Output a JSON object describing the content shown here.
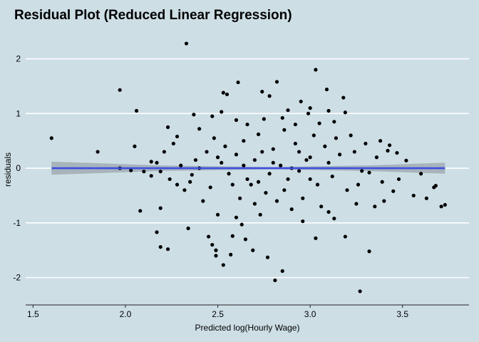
{
  "chart_data": {
    "type": "scatter",
    "title": "Residual Plot (Reduced Linear Regression)",
    "xlabel": "Predicted log(Hourly Wage)",
    "ylabel": "residuals",
    "xlim": [
      1.46,
      3.86
    ],
    "ylim": [
      -2.5,
      2.45
    ],
    "x_ticks": [
      1.5,
      2.0,
      2.5,
      3.0,
      3.5
    ],
    "x_tick_labels": [
      "1.5",
      "2.0",
      "2.5",
      "3.0",
      "3.5"
    ],
    "y_ticks": [
      -2,
      -1,
      0,
      1,
      2
    ],
    "y_tick_labels": [
      "-2",
      "-1",
      "0",
      "1",
      "2"
    ],
    "grid": "horizontal",
    "colors": {
      "background": "#cddee5",
      "grid": "#ffffff",
      "points": "#000000",
      "fit_line": "#3f4fe0",
      "confidence_band": "#9aa5ab"
    },
    "fit_line": {
      "x": [
        1.6,
        3.73
      ],
      "y": [
        0.0,
        0.0
      ]
    },
    "confidence_band": {
      "x": [
        1.6,
        2.2,
        2.8,
        3.3,
        3.73
      ],
      "lower": [
        -0.12,
        -0.05,
        -0.02,
        -0.05,
        -0.1
      ],
      "upper": [
        0.12,
        0.05,
        0.02,
        0.05,
        0.1
      ]
    },
    "points": [
      [
        2.33,
        2.28
      ],
      [
        3.03,
        1.8
      ],
      [
        1.97,
        1.43
      ],
      [
        2.53,
        1.38
      ],
      [
        2.06,
        1.05
      ],
      [
        1.6,
        0.55
      ],
      [
        1.85,
        0.3
      ],
      [
        2.82,
        1.58
      ],
      [
        2.61,
        1.57
      ],
      [
        2.55,
        1.35
      ],
      [
        2.74,
        1.4
      ],
      [
        3.09,
        1.44
      ],
      [
        3.18,
        1.29
      ],
      [
        2.78,
        1.32
      ],
      [
        2.95,
        1.22
      ],
      [
        2.52,
        1.03
      ],
      [
        3.0,
        1.1
      ],
      [
        3.1,
        1.05
      ],
      [
        3.19,
        1.02
      ],
      [
        2.88,
        1.06
      ],
      [
        2.99,
        1.0
      ],
      [
        2.37,
        0.98
      ],
      [
        2.47,
        0.95
      ],
      [
        2.6,
        0.88
      ],
      [
        2.75,
        0.9
      ],
      [
        2.85,
        0.92
      ],
      [
        2.92,
        0.8
      ],
      [
        3.05,
        0.82
      ],
      [
        3.13,
        0.85
      ],
      [
        2.23,
        0.75
      ],
      [
        2.4,
        0.72
      ],
      [
        2.66,
        0.8
      ],
      [
        3.3,
        0.45
      ],
      [
        3.38,
        0.5
      ],
      [
        3.43,
        0.42
      ],
      [
        3.52,
        0.14
      ],
      [
        3.47,
        0.28
      ],
      [
        3.42,
        0.32
      ],
      [
        2.05,
        0.4
      ],
      [
        2.14,
        0.12
      ],
      [
        2.17,
        0.1
      ],
      [
        2.21,
        0.3
      ],
      [
        2.26,
        0.45
      ],
      [
        2.28,
        0.58
      ],
      [
        2.19,
        -0.06
      ],
      [
        2.1,
        -0.06
      ],
      [
        2.03,
        -0.04
      ],
      [
        2.14,
        -0.14
      ],
      [
        1.97,
        0.0
      ],
      [
        2.24,
        -0.2
      ],
      [
        3.26,
        -0.3
      ],
      [
        3.32,
        -0.08
      ],
      [
        3.39,
        -0.25
      ],
      [
        3.45,
        -0.42
      ],
      [
        3.48,
        -0.2
      ],
      [
        3.56,
        -0.5
      ],
      [
        3.6,
        -0.1
      ],
      [
        3.63,
        -0.55
      ],
      [
        3.68,
        -0.32
      ],
      [
        3.71,
        -0.7
      ],
      [
        3.73,
        -0.67
      ],
      [
        3.67,
        -0.35
      ],
      [
        2.08,
        -0.78
      ],
      [
        2.19,
        -0.73
      ],
      [
        2.17,
        -1.17
      ],
      [
        2.19,
        -1.44
      ],
      [
        2.23,
        -1.48
      ],
      [
        2.34,
        -1.1
      ],
      [
        2.45,
        -1.25
      ],
      [
        2.47,
        -1.4
      ],
      [
        2.49,
        -1.5
      ],
      [
        2.49,
        -1.6
      ],
      [
        2.53,
        -1.77
      ],
      [
        2.57,
        -1.58
      ],
      [
        2.58,
        -1.24
      ],
      [
        2.63,
        -1.03
      ],
      [
        2.65,
        -1.3
      ],
      [
        2.69,
        -1.5
      ],
      [
        2.73,
        -0.85
      ],
      [
        2.77,
        -1.63
      ],
      [
        2.81,
        -2.05
      ],
      [
        2.85,
        -1.88
      ],
      [
        2.96,
        -0.97
      ],
      [
        3.03,
        -1.28
      ],
      [
        3.13,
        -0.92
      ],
      [
        3.19,
        -1.25
      ],
      [
        3.27,
        -2.25
      ],
      [
        3.32,
        -1.52
      ],
      [
        3.25,
        -0.65
      ],
      [
        3.35,
        -0.7
      ],
      [
        3.4,
        -0.6
      ],
      [
        3.1,
        -0.8
      ],
      [
        2.9,
        -0.75
      ],
      [
        2.7,
        -0.65
      ],
      [
        2.6,
        -0.9
      ],
      [
        2.5,
        -0.85
      ],
      [
        2.42,
        -0.6
      ],
      [
        2.32,
        -0.4
      ],
      [
        2.28,
        -0.3
      ],
      [
        2.35,
        -0.25
      ],
      [
        2.38,
        0.15
      ],
      [
        2.44,
        0.3
      ],
      [
        2.48,
        0.55
      ],
      [
        2.52,
        0.1
      ],
      [
        2.56,
        -0.1
      ],
      [
        2.6,
        0.25
      ],
      [
        2.64,
        0.5
      ],
      [
        2.68,
        -0.3
      ],
      [
        2.72,
        0.62
      ],
      [
        2.76,
        -0.45
      ],
      [
        2.8,
        0.35
      ],
      [
        2.84,
        0.05
      ],
      [
        2.88,
        -0.2
      ],
      [
        2.92,
        0.45
      ],
      [
        2.96,
        -0.55
      ],
      [
        3.0,
        0.2
      ],
      [
        3.04,
        -0.3
      ],
      [
        3.08,
        0.4
      ],
      [
        3.12,
        -0.15
      ],
      [
        3.16,
        0.25
      ],
      [
        3.2,
        -0.4
      ],
      [
        3.24,
        0.3
      ],
      [
        3.28,
        -0.05
      ],
      [
        3.36,
        0.2
      ],
      [
        2.3,
        0.05
      ],
      [
        2.36,
        -0.12
      ],
      [
        2.46,
        -0.35
      ],
      [
        2.54,
        0.4
      ],
      [
        2.62,
        -0.55
      ],
      [
        2.7,
        0.15
      ],
      [
        2.78,
        -0.1
      ],
      [
        2.86,
        0.7
      ],
      [
        2.94,
        0.3
      ],
      [
        3.02,
        0.6
      ],
      [
        3.06,
        -0.7
      ],
      [
        3.14,
        0.55
      ],
      [
        3.22,
        0.6
      ],
      [
        2.66,
        -0.2
      ],
      [
        2.74,
        0.3
      ],
      [
        2.82,
        -0.6
      ],
      [
        2.9,
        0.0
      ],
      [
        2.98,
        0.15
      ],
      [
        2.4,
        0.0
      ],
      [
        2.5,
        0.2
      ],
      [
        2.58,
        -0.3
      ],
      [
        2.64,
        0.05
      ],
      [
        2.72,
        -0.25
      ],
      [
        2.8,
        0.1
      ],
      [
        2.86,
        -0.4
      ],
      [
        2.94,
        -0.05
      ],
      [
        3.0,
        -0.2
      ],
      [
        3.1,
        0.1
      ]
    ]
  }
}
